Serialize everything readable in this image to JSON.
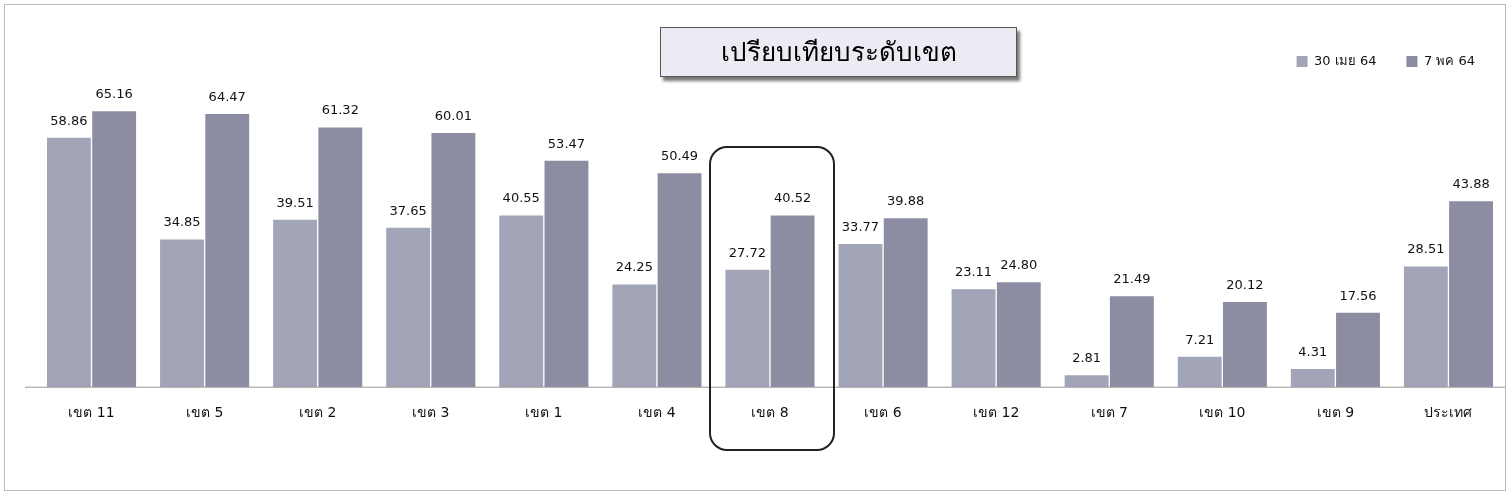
{
  "chart_data": {
    "type": "bar",
    "title": "เปรียบเทียบระดับเขต",
    "categories": [
      "เขต 11",
      "เขต 5",
      "เขต 2",
      "เขต 3",
      "เขต 1",
      "เขต 4",
      "เขต 8",
      "เขต 6",
      "เขต 12",
      "เขต 7",
      "เขต 10",
      "เขต 9",
      "ประเทศ"
    ],
    "series": [
      {
        "name": "30 เมย 64",
        "color": "#a2a4b8",
        "values": [
          58.86,
          34.85,
          39.51,
          37.65,
          40.55,
          24.25,
          27.72,
          33.77,
          23.11,
          2.81,
          7.21,
          4.31,
          28.51
        ],
        "value_labels": [
          "58.86",
          "34.85",
          "39.51",
          "37.65",
          "40.55",
          "24.25",
          "27.72",
          "33.77",
          "23.11",
          "2.81",
          "7.21",
          "4.31",
          "28.51"
        ]
      },
      {
        "name": "7 พค 64",
        "color": "#8c8ca2",
        "values": [
          65.16,
          64.47,
          61.32,
          60.01,
          53.47,
          50.49,
          40.52,
          39.88,
          24.8,
          21.49,
          20.12,
          17.56,
          43.88
        ],
        "value_labels": [
          "65.16",
          "64.47",
          "61.32",
          "60.01",
          "53.47",
          "50.49",
          "40.52",
          "39.88",
          "24.80",
          "21.49",
          "20.12",
          "17.56",
          "43.88"
        ]
      }
    ],
    "grid": false,
    "legend": "top right"
  }
}
